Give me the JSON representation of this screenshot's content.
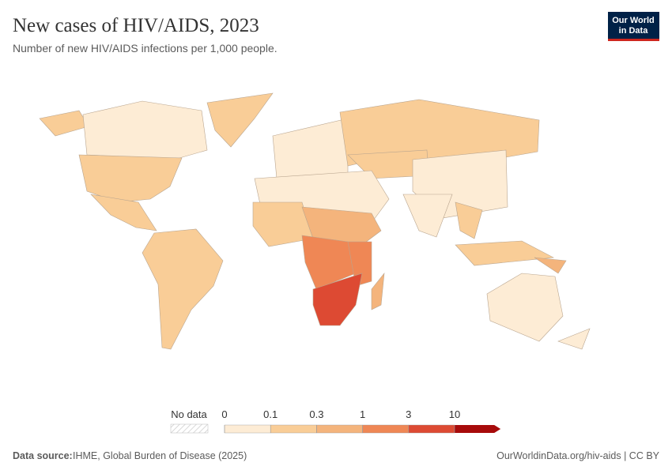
{
  "header": {
    "title": "New cases of HIV/AIDS, 2023",
    "subtitle": "Number of new HIV/AIDS infections per 1,000 people.",
    "logo": [
      "Our World",
      "in Data"
    ]
  },
  "legend": {
    "no_data": "No data",
    "ticks": [
      0,
      0.1,
      0.3,
      1,
      3,
      10
    ],
    "colors": [
      "#fdecd5",
      "#f9cd97",
      "#f4b47c",
      "#ef8755",
      "#dd4a33",
      "#a70b0b"
    ]
  },
  "footer": {
    "source_label": "Data source:",
    "source": "IHME, Global Burden of Disease (2025)",
    "url": "OurWorldinData.org/hiv-aids | CC BY"
  }
}
